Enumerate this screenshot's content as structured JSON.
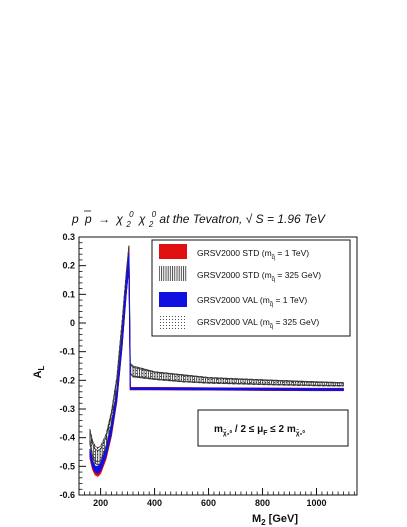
{
  "chart_data": {
    "type": "line",
    "title": "p p̄ → χ̃₂⁰ χ̃₂⁰ at the Tevatron, √S = 1.96 TeV",
    "title_parts": {
      "p": "p",
      "pbar": "p",
      "arrow": "→",
      "chi": "χ",
      "tilde": "~",
      "sup0": "0",
      "sub2": "2",
      "mid": " at the Tevatron,",
      "sqrt": "√",
      "s": "S",
      "eq": " = 1.96 TeV"
    },
    "xlabel": "M₂ [GeV]",
    "xlabel_parts": {
      "main": "M",
      "sub": "2",
      "rest": " [GeV]"
    },
    "ylabel": "A_L",
    "ylabel_parts": {
      "main": "A",
      "sub": "L"
    },
    "xlim": [
      120,
      1150
    ],
    "ylim": [
      -0.6,
      0.3
    ],
    "xticks": [
      200,
      400,
      600,
      800,
      1000
    ],
    "yticks": [
      -0.6,
      -0.5,
      -0.4,
      -0.3,
      -0.2,
      -0.1,
      0,
      0.1,
      0.2,
      0.3
    ],
    "ytick_labels": [
      "-0.6",
      "-0.5",
      "-0.4",
      "-0.3",
      "-0.2",
      "-0.1",
      "0",
      "0.1",
      "0.2",
      "0.3"
    ],
    "grid": false,
    "legend_position": "top-right",
    "series": [
      {
        "name": "GRSV2000 STD",
        "mass_label": "(m",
        "mass_sub": "q̃",
        "mass_value": " = 1 TeV)",
        "color": "#e01010",
        "style": "solid-band",
        "x": [
          160,
          170,
          180,
          190,
          200,
          220,
          240,
          260,
          280,
          295,
          305,
          310,
          320,
          400,
          600,
          800,
          1000,
          1100
        ],
        "upper": [
          -0.45,
          -0.49,
          -0.51,
          -0.51,
          -0.5,
          -0.45,
          -0.37,
          -0.25,
          -0.05,
          0.14,
          0.25,
          -0.225,
          -0.225,
          -0.225,
          -0.226,
          -0.227,
          -0.228,
          -0.228
        ],
        "lower": [
          -0.47,
          -0.51,
          -0.53,
          -0.535,
          -0.525,
          -0.475,
          -0.395,
          -0.275,
          -0.08,
          0.1,
          0.2,
          -0.233,
          -0.233,
          -0.233,
          -0.234,
          -0.235,
          -0.236,
          -0.236
        ]
      },
      {
        "name": "GRSV2000 STD",
        "mass_label": "(m",
        "mass_sub": "q̃",
        "mass_value": " = 325 GeV)",
        "color": "#222222",
        "style": "vertical-hatch",
        "x": [
          160,
          170,
          180,
          190,
          200,
          220,
          240,
          260,
          280,
          295,
          305,
          310,
          320,
          400,
          500,
          600,
          800,
          1000,
          1100
        ],
        "upper": [
          -0.38,
          -0.42,
          -0.44,
          -0.445,
          -0.44,
          -0.4,
          -0.32,
          -0.2,
          0.0,
          0.17,
          0.27,
          -0.14,
          -0.15,
          -0.17,
          -0.18,
          -0.19,
          -0.198,
          -0.205,
          -0.208
        ],
        "lower": [
          -0.42,
          -0.47,
          -0.49,
          -0.495,
          -0.49,
          -0.44,
          -0.36,
          -0.24,
          -0.04,
          0.12,
          0.21,
          -0.175,
          -0.185,
          -0.195,
          -0.203,
          -0.208,
          -0.213,
          -0.217,
          -0.218
        ]
      },
      {
        "name": "GRSV2000 VAL",
        "mass_label": "(m",
        "mass_sub": "q̃",
        "mass_value": " = 1 TeV)",
        "color": "#1010e0",
        "style": "solid-band",
        "x": [
          160,
          170,
          180,
          190,
          200,
          220,
          240,
          260,
          280,
          295,
          305,
          310,
          320,
          400,
          600,
          800,
          1000,
          1100
        ],
        "upper": [
          -0.44,
          -0.48,
          -0.5,
          -0.5,
          -0.49,
          -0.44,
          -0.36,
          -0.245,
          -0.045,
          0.145,
          0.245,
          -0.226,
          -0.226,
          -0.226,
          -0.227,
          -0.228,
          -0.229,
          -0.229
        ],
        "lower": [
          -0.46,
          -0.5,
          -0.52,
          -0.525,
          -0.515,
          -0.465,
          -0.385,
          -0.27,
          -0.075,
          0.105,
          0.195,
          -0.232,
          -0.232,
          -0.232,
          -0.233,
          -0.234,
          -0.235,
          -0.235
        ]
      },
      {
        "name": "GRSV2000 VAL",
        "mass_label": "(m",
        "mass_sub": "q̃",
        "mass_value": " = 325 GeV)",
        "color": "#222222",
        "style": "dots",
        "x": [
          160,
          170,
          180,
          190,
          200,
          220,
          240,
          260,
          280,
          295,
          305,
          310,
          320,
          400,
          500,
          600,
          800,
          1000,
          1100
        ],
        "upper": [
          -0.37,
          -0.41,
          -0.43,
          -0.435,
          -0.43,
          -0.39,
          -0.31,
          -0.19,
          0.01,
          0.175,
          0.27,
          -0.145,
          -0.155,
          -0.172,
          -0.182,
          -0.192,
          -0.2,
          -0.207,
          -0.21
        ],
        "lower": [
          -0.41,
          -0.46,
          -0.48,
          -0.485,
          -0.48,
          -0.43,
          -0.35,
          -0.23,
          -0.03,
          0.125,
          0.215,
          -0.178,
          -0.188,
          -0.197,
          -0.205,
          -0.21,
          -0.215,
          -0.219,
          -0.22
        ]
      }
    ],
    "annotation": {
      "m": "m",
      "chi_sub": "χ̃₂⁰",
      "frac": " / 2 ≤ μ",
      "mu_sub": "F",
      "le": " ≤ 2 m",
      "chi_sub2": "χ̃₂⁰"
    }
  }
}
